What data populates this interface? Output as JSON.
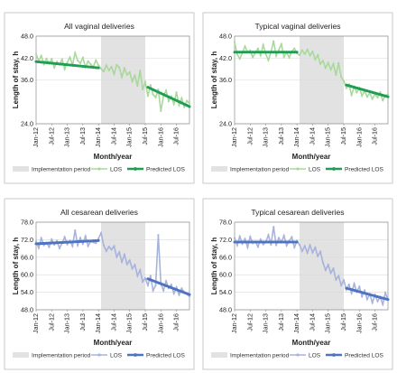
{
  "chart_data": [
    {
      "type": "line",
      "title": "All vaginal deliveries",
      "xlabel": "Month/year",
      "ylabel": "Length of stay, h",
      "ylim": [
        24,
        48
      ],
      "yticks": [
        "24.0",
        "36.0",
        "42.0",
        "48.0"
      ],
      "x_ticks": [
        "Jan-12",
        "Jul-12",
        "Jan-13",
        "Jul-13",
        "Jan-14",
        "Jul-14",
        "Jan-15",
        "Jul-15",
        "Jan-16",
        "Jul-16"
      ],
      "implementation_period": [
        "Feb-14",
        "Jul-15"
      ],
      "grid": true,
      "legend_position": "bottom",
      "legend": [
        "Implementation period",
        "LOS",
        "Predicted LOS"
      ],
      "series": [
        {
          "name": "LOS",
          "color": "#a8d99a",
          "x": [
            "Jan-12",
            "Feb-12",
            "Mar-12",
            "Apr-12",
            "May-12",
            "Jun-12",
            "Jul-12",
            "Aug-12",
            "Sep-12",
            "Oct-12",
            "Nov-12",
            "Dec-12",
            "Jan-13",
            "Feb-13",
            "Mar-13",
            "Apr-13",
            "May-13",
            "Jun-13",
            "Jul-13",
            "Aug-13",
            "Sep-13",
            "Oct-13",
            "Nov-13",
            "Dec-13",
            "Jan-14",
            "Feb-14",
            "Mar-14",
            "Apr-14",
            "May-14",
            "Jun-14",
            "Jul-14",
            "Aug-14",
            "Sep-14",
            "Oct-14",
            "Nov-14",
            "Dec-14",
            "Jan-15",
            "Feb-15",
            "Mar-15",
            "Apr-15",
            "May-15",
            "Jun-15",
            "Jul-15",
            "Aug-15",
            "Sep-15",
            "Oct-15",
            "Nov-15",
            "Dec-15",
            "Jan-16",
            "Feb-16",
            "Mar-16",
            "Apr-16",
            "May-16",
            "Jun-16",
            "Jul-16",
            "Aug-16",
            "Sep-16",
            "Oct-16",
            "Nov-16",
            "Dec-16"
          ],
          "values": [
            43.1,
            41.2,
            42.6,
            40.3,
            41.8,
            40.5,
            41.7,
            39.4,
            41.0,
            40.2,
            41.6,
            39.0,
            40.8,
            42.2,
            40.1,
            43.4,
            41.3,
            40.6,
            42.1,
            39.5,
            41.1,
            40.3,
            39.6,
            41.4,
            40.0,
            39.1,
            38.3,
            40.0,
            38.6,
            39.6,
            37.6,
            40.1,
            39.4,
            36.8,
            39.2,
            37.4,
            38.1,
            35.6,
            37.2,
            34.4,
            38.6,
            33.4,
            35.4,
            31.6,
            34.6,
            32.0,
            31.2,
            33.4,
            27.5,
            31.6,
            33.1,
            30.2,
            31.5,
            29.4,
            32.6,
            29.1,
            31.0,
            28.6,
            30.3,
            29.6
          ]
        },
        {
          "name": "Predicted LOS",
          "color": "#1f9d55",
          "segments": [
            {
              "x": [
                "Jan-12",
                "Jan-14"
              ],
              "values": [
                41.0,
                39.3
              ]
            },
            {
              "x": [
                "Aug-15",
                "Dec-16"
              ],
              "values": [
                34.0,
                28.7
              ]
            }
          ]
        }
      ]
    },
    {
      "type": "line",
      "title": "Typical vaginal deliveries",
      "xlabel": "Month/year",
      "ylabel": "Length of stay, h",
      "ylim": [
        24,
        48
      ],
      "yticks": [
        "24.0",
        "36.0",
        "42.0",
        "48.0"
      ],
      "x_ticks": [
        "Jan-12",
        "Jul-12",
        "Jan-13",
        "Jul-13",
        "Jan-14",
        "Jul-14",
        "Jan-15",
        "Jul-15",
        "Jan-16",
        "Jul-16"
      ],
      "implementation_period": [
        "Feb-14",
        "Jul-15"
      ],
      "grid": true,
      "legend_position": "bottom",
      "legend": [
        "Implementation period",
        "LOS",
        "Predicted LOS"
      ],
      "series": [
        {
          "name": "LOS",
          "color": "#a8d99a",
          "x": [
            "Jan-12",
            "Feb-12",
            "Mar-12",
            "Apr-12",
            "May-12",
            "Jun-12",
            "Jul-12",
            "Aug-12",
            "Sep-12",
            "Oct-12",
            "Nov-12",
            "Dec-12",
            "Jan-13",
            "Feb-13",
            "Mar-13",
            "Apr-13",
            "May-13",
            "Jun-13",
            "Jul-13",
            "Aug-13",
            "Sep-13",
            "Oct-13",
            "Nov-13",
            "Dec-13",
            "Jan-14",
            "Feb-14",
            "Mar-14",
            "Apr-14",
            "May-14",
            "Jun-14",
            "Jul-14",
            "Aug-14",
            "Sep-14",
            "Oct-14",
            "Nov-14",
            "Dec-14",
            "Jan-15",
            "Feb-15",
            "Mar-15",
            "Apr-15",
            "May-15",
            "Jun-15",
            "Jul-15",
            "Aug-15",
            "Sep-15",
            "Oct-15",
            "Nov-15",
            "Dec-15",
            "Jan-16",
            "Feb-16",
            "Mar-16",
            "Apr-16",
            "May-16",
            "Jun-16",
            "Jul-16",
            "Aug-16",
            "Sep-16",
            "Oct-16",
            "Nov-16",
            "Dec-16"
          ],
          "values": [
            46.3,
            43.0,
            41.8,
            43.4,
            45.2,
            43.6,
            44.1,
            42.2,
            43.5,
            44.6,
            42.7,
            45.6,
            43.1,
            41.4,
            43.7,
            46.6,
            42.6,
            44.2,
            45.8,
            42.3,
            43.6,
            42.1,
            43.8,
            44.6,
            43.3,
            42.8,
            44.1,
            43.1,
            44.3,
            42.7,
            43.8,
            41.6,
            42.8,
            40.4,
            41.2,
            39.3,
            40.7,
            38.8,
            40.4,
            37.4,
            40.6,
            36.8,
            35.7,
            33.8,
            34.8,
            31.9,
            34.1,
            32.6,
            33.8,
            31.7,
            33.0,
            31.4,
            32.4,
            30.8,
            32.1,
            31.2,
            32.6,
            30.4,
            31.7,
            32.1
          ]
        },
        {
          "name": "Predicted LOS",
          "color": "#1f9d55",
          "segments": [
            {
              "x": [
                "Jan-12",
                "Jan-14"
              ],
              "values": [
                43.6,
                43.6
              ]
            },
            {
              "x": [
                "Aug-15",
                "Dec-16"
              ],
              "values": [
                34.6,
                31.4
              ]
            }
          ]
        }
      ]
    },
    {
      "type": "line",
      "title": "All cesarean deliveries",
      "xlabel": "Month/year",
      "ylabel": "Length of stay, h",
      "ylim": [
        48,
        78
      ],
      "yticks": [
        "48.0",
        "54.0",
        "60.0",
        "66.0",
        "72.0",
        "78.0"
      ],
      "x_ticks": [
        "Jan-12",
        "Jul-12",
        "Jan-13",
        "Jul-13",
        "Jan-14",
        "Jul-14",
        "Jan-15",
        "Jul-15",
        "Jan-16",
        "Jul-16"
      ],
      "implementation_period": [
        "Feb-14",
        "Jul-15"
      ],
      "grid": true,
      "legend_position": "bottom",
      "legend": [
        "Implementation period",
        "LOS",
        "Predicted LOS"
      ],
      "series": [
        {
          "name": "LOS",
          "color": "#a7b3dc",
          "x": [
            "Jan-12",
            "Feb-12",
            "Mar-12",
            "Apr-12",
            "May-12",
            "Jun-12",
            "Jul-12",
            "Aug-12",
            "Sep-12",
            "Oct-12",
            "Nov-12",
            "Dec-12",
            "Jan-13",
            "Feb-13",
            "Mar-13",
            "Apr-13",
            "May-13",
            "Jun-13",
            "Jul-13",
            "Aug-13",
            "Sep-13",
            "Oct-13",
            "Nov-13",
            "Dec-13",
            "Jan-14",
            "Feb-14",
            "Mar-14",
            "Apr-14",
            "May-14",
            "Jun-14",
            "Jul-14",
            "Aug-14",
            "Sep-14",
            "Oct-14",
            "Nov-14",
            "Dec-14",
            "Jan-15",
            "Feb-15",
            "Mar-15",
            "Apr-15",
            "May-15",
            "Jun-15",
            "Jul-15",
            "Aug-15",
            "Sep-15",
            "Oct-15",
            "Nov-15",
            "Dec-15",
            "Jan-16",
            "Feb-16",
            "Mar-16",
            "Apr-16",
            "May-16",
            "Jun-16",
            "Jul-16",
            "Aug-16",
            "Sep-16",
            "Oct-16",
            "Nov-16",
            "Dec-16"
          ],
          "values": [
            71.4,
            69.2,
            72.5,
            70.1,
            71.0,
            69.5,
            72.1,
            70.3,
            71.6,
            69.1,
            70.8,
            72.9,
            70.4,
            71.6,
            69.8,
            75.2,
            70.1,
            72.6,
            70.6,
            73.2,
            69.8,
            71.4,
            71.1,
            70.8,
            72.4,
            74.3,
            70.1,
            68.1,
            69.6,
            68.6,
            69.8,
            66.1,
            67.7,
            64.4,
            66.9,
            63.6,
            64.9,
            62.1,
            63.4,
            59.6,
            61.6,
            57.6,
            58.8,
            56.4,
            59.6,
            54.6,
            56.4,
            73.6,
            56.9,
            54.6,
            57.8,
            55.4,
            56.6,
            53.6,
            55.7,
            53.1,
            55.3,
            54.0,
            53.4,
            52.6
          ]
        },
        {
          "name": "Predicted LOS",
          "color": "#4f73c1",
          "segments": [
            {
              "x": [
                "Jan-12",
                "Jan-14"
              ],
              "values": [
                70.6,
                71.7
              ]
            },
            {
              "x": [
                "Aug-15",
                "Dec-16"
              ],
              "values": [
                58.6,
                53.2
              ]
            }
          ]
        }
      ]
    },
    {
      "type": "line",
      "title": "Typical cesarean deliveries",
      "xlabel": "Month/year",
      "ylabel": "Length of stay, h",
      "ylim": [
        48,
        78
      ],
      "yticks": [
        "48.0",
        "54.0",
        "60.0",
        "66.0",
        "72.0",
        "78.0"
      ],
      "x_ticks": [
        "Jan-12",
        "Jul-12",
        "Jan-13",
        "Jul-13",
        "Jan-14",
        "Jul-14",
        "Jan-15",
        "Jul-15",
        "Jan-16",
        "Jul-16"
      ],
      "implementation_period": [
        "Feb-14",
        "Jul-15"
      ],
      "grid": true,
      "legend_position": "bottom",
      "legend": [
        "Implementation period",
        "LOS",
        "Predicted LOS"
      ],
      "series": [
        {
          "name": "LOS",
          "color": "#a7b3dc",
          "x": [
            "Jan-12",
            "Feb-12",
            "Mar-12",
            "Apr-12",
            "May-12",
            "Jun-12",
            "Jul-12",
            "Aug-12",
            "Sep-12",
            "Oct-12",
            "Nov-12",
            "Dec-12",
            "Jan-13",
            "Feb-13",
            "Mar-13",
            "Apr-13",
            "May-13",
            "Jun-13",
            "Jul-13",
            "Aug-13",
            "Sep-13",
            "Oct-13",
            "Nov-13",
            "Dec-13",
            "Jan-14",
            "Feb-14",
            "Mar-14",
            "Apr-14",
            "May-14",
            "Jun-14",
            "Jul-14",
            "Aug-14",
            "Sep-14",
            "Oct-14",
            "Nov-14",
            "Dec-14",
            "Jan-15",
            "Feb-15",
            "Mar-15",
            "Apr-15",
            "May-15",
            "Jun-15",
            "Jul-15",
            "Aug-15",
            "Sep-15",
            "Oct-15",
            "Nov-15",
            "Dec-15",
            "Jan-16",
            "Feb-16",
            "Mar-16",
            "Apr-16",
            "May-16",
            "Jun-16",
            "Jul-16",
            "Aug-16",
            "Sep-16",
            "Oct-16",
            "Nov-16",
            "Dec-16"
          ],
          "values": [
            72.6,
            70.1,
            73.1,
            70.6,
            72.3,
            69.4,
            73.0,
            70.8,
            71.4,
            69.6,
            72.1,
            70.4,
            71.2,
            73.6,
            70.3,
            76.4,
            70.1,
            72.6,
            71.1,
            73.4,
            70.0,
            71.6,
            72.9,
            69.4,
            71.6,
            70.2,
            68.1,
            69.8,
            67.5,
            70.1,
            67.6,
            69.3,
            66.4,
            67.9,
            64.1,
            61.6,
            63.4,
            60.6,
            62.1,
            58.3,
            59.6,
            56.4,
            58.1,
            54.9,
            56.6,
            53.7,
            56.9,
            54.1,
            55.9,
            52.6,
            54.6,
            51.6,
            53.4,
            50.4,
            53.1,
            50.9,
            52.4,
            49.9,
            53.8,
            51.4
          ]
        },
        {
          "name": "Predicted LOS",
          "color": "#4f73c1",
          "segments": [
            {
              "x": [
                "Jan-12",
                "Jan-14"
              ],
              "values": [
                71.2,
                71.2
              ]
            },
            {
              "x": [
                "Aug-15",
                "Dec-16"
              ],
              "values": [
                55.4,
                51.5
              ]
            }
          ]
        }
      ]
    }
  ]
}
